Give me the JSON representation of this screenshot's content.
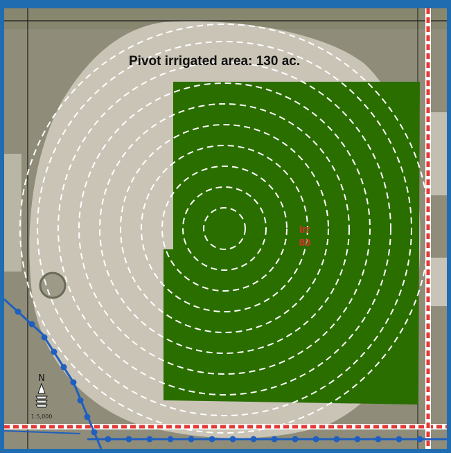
{
  "map": {
    "title": "Pivot irrigated area: 130 ac.",
    "field_label": {
      "line1": "Irr",
      "line2": "80"
    },
    "north_arrow": {
      "letter": "N",
      "icon": "north-arrow-icon"
    },
    "scale": "1:5,000",
    "colors": {
      "frame": "#1f6cb0",
      "irrigated_polygon": "#2a6e00",
      "pivot_circle": "#c9c4b6",
      "road_line": "#e53935",
      "utility_line": "#1f5fbf",
      "pivot_rings": "#ffffff",
      "field_label": "#d9302a"
    }
  }
}
